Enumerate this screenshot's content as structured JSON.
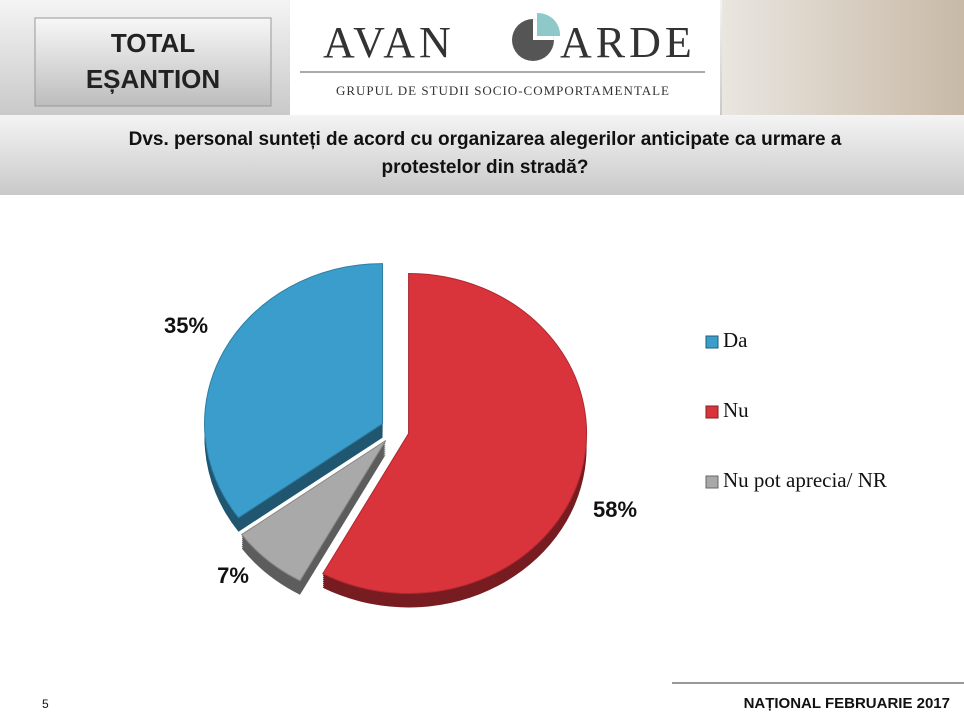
{
  "header": {
    "sample_line1": "TOTAL",
    "sample_line2": "EȘANTION",
    "logo_left": "AVAN",
    "logo_right": "ARDE",
    "logo_subtitle": "GRUPUL DE STUDII SOCIO-COMPORTAMENTALE"
  },
  "chart_data": {
    "type": "pie",
    "title": "Dvs. personal sunteți de acord cu organizarea alegerilor anticipate ca urmare a protestelor din stradă?",
    "categories": [
      "Da",
      "Nu",
      "Nu pot aprecia/ NR"
    ],
    "values": [
      35,
      58,
      7
    ],
    "value_labels": [
      "35%",
      "58%",
      "7%"
    ],
    "colors": [
      "#3a9dcc",
      "#d9333b",
      "#a9a9a9"
    ],
    "legend": "right"
  },
  "footer": {
    "page": "5",
    "edition": "NAȚIONAL FEBRUARIE 2017"
  }
}
